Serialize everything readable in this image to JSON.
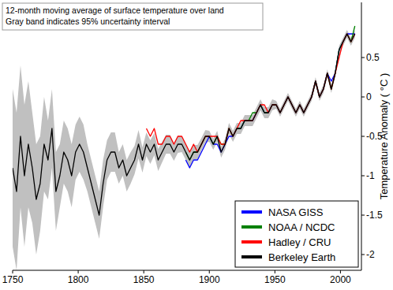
{
  "chart_data": {
    "type": "line",
    "annotations": [
      "12-month moving average of surface temperature over land",
      "Gray band indicates 95% uncertainty interval"
    ],
    "y_label": "Temperature Anomaly ( °C )",
    "xlim": [
      1750,
      2016
    ],
    "xticks": [
      1750,
      1800,
      1850,
      1900,
      1950,
      2000
    ],
    "ylim": [
      -2.2,
      1.2
    ],
    "yticks": [
      -2,
      -1.5,
      -1,
      -0.5,
      0,
      0.5
    ],
    "grid": false,
    "legend": "lower right",
    "x": [
      1750,
      1753,
      1756,
      1759,
      1762,
      1765,
      1768,
      1771,
      1774,
      1777,
      1780,
      1783,
      1786,
      1789,
      1792,
      1795,
      1798,
      1801,
      1804,
      1807,
      1810,
      1813,
      1816,
      1819,
      1822,
      1825,
      1828,
      1831,
      1834,
      1837,
      1840,
      1843,
      1846,
      1849,
      1852,
      1855,
      1858,
      1861,
      1864,
      1867,
      1870,
      1873,
      1876,
      1879,
      1882,
      1885,
      1888,
      1891,
      1894,
      1897,
      1900,
      1903,
      1906,
      1909,
      1912,
      1915,
      1918,
      1921,
      1924,
      1927,
      1930,
      1933,
      1936,
      1939,
      1942,
      1945,
      1948,
      1951,
      1954,
      1957,
      1960,
      1963,
      1966,
      1969,
      1972,
      1975,
      1978,
      1981,
      1984,
      1987,
      1990,
      1993,
      1996,
      1999,
      2002,
      2005,
      2008,
      2011
    ],
    "series": [
      {
        "name": "NASA GISS",
        "color": "#0000ff",
        "values": [
          null,
          null,
          null,
          null,
          null,
          null,
          null,
          null,
          null,
          null,
          null,
          null,
          null,
          null,
          null,
          null,
          null,
          null,
          null,
          null,
          null,
          null,
          null,
          null,
          null,
          null,
          null,
          null,
          null,
          null,
          null,
          null,
          null,
          null,
          null,
          null,
          null,
          null,
          null,
          null,
          null,
          null,
          null,
          null,
          -0.8,
          -0.9,
          -0.8,
          -0.8,
          -0.7,
          -0.6,
          -0.5,
          -0.6,
          -0.6,
          -0.7,
          -0.6,
          -0.5,
          -0.5,
          -0.4,
          -0.4,
          -0.3,
          -0.3,
          -0.3,
          -0.2,
          -0.1,
          -0.2,
          -0.2,
          -0.1,
          -0.1,
          -0.2,
          -0.1,
          0.0,
          -0.1,
          -0.2,
          -0.1,
          -0.2,
          -0.1,
          0.0,
          0.2,
          0.0,
          0.1,
          0.3,
          0.2,
          0.3,
          0.6,
          0.7,
          0.8,
          0.8,
          0.8
        ]
      },
      {
        "name": "NOAA / NCDC",
        "color": "#008000",
        "values": [
          null,
          null,
          null,
          null,
          null,
          null,
          null,
          null,
          null,
          null,
          null,
          null,
          null,
          null,
          null,
          null,
          null,
          null,
          null,
          null,
          null,
          null,
          null,
          null,
          null,
          null,
          null,
          null,
          null,
          null,
          null,
          null,
          null,
          null,
          null,
          null,
          null,
          null,
          null,
          null,
          null,
          null,
          null,
          null,
          -0.7,
          -0.8,
          -0.7,
          -0.7,
          -0.6,
          -0.5,
          -0.5,
          -0.6,
          -0.5,
          -0.6,
          -0.6,
          -0.4,
          -0.5,
          -0.4,
          -0.4,
          -0.3,
          -0.3,
          -0.2,
          -0.2,
          -0.1,
          -0.2,
          -0.2,
          -0.1,
          -0.1,
          -0.2,
          -0.1,
          0.0,
          -0.1,
          -0.2,
          -0.1,
          -0.2,
          -0.1,
          0.0,
          0.2,
          0.0,
          0.1,
          0.3,
          0.1,
          0.3,
          0.6,
          0.7,
          0.8,
          0.7,
          0.9
        ]
      },
      {
        "name": "Hadley / CRU",
        "color": "#ff0000",
        "values": [
          null,
          null,
          null,
          null,
          null,
          null,
          null,
          null,
          null,
          null,
          null,
          null,
          null,
          null,
          null,
          null,
          null,
          null,
          null,
          null,
          null,
          null,
          null,
          null,
          null,
          null,
          null,
          null,
          null,
          null,
          null,
          null,
          null,
          null,
          -0.4,
          -0.5,
          -0.4,
          -0.6,
          -0.6,
          -0.5,
          -0.5,
          -0.6,
          -0.5,
          -0.5,
          -0.6,
          -0.7,
          -0.6,
          -0.7,
          -0.6,
          -0.5,
          -0.5,
          -0.5,
          -0.5,
          -0.6,
          -0.6,
          -0.4,
          -0.5,
          -0.4,
          -0.3,
          -0.3,
          -0.3,
          -0.3,
          -0.2,
          -0.1,
          -0.1,
          -0.2,
          -0.1,
          -0.1,
          -0.2,
          -0.1,
          0.0,
          -0.1,
          -0.2,
          -0.1,
          -0.2,
          -0.1,
          0.0,
          0.2,
          0.0,
          0.1,
          0.3,
          0.1,
          0.3,
          0.5,
          0.7,
          0.8,
          0.7,
          0.8
        ]
      },
      {
        "name": "Berkeley Earth",
        "color": "#000000",
        "values": [
          -0.9,
          -1.2,
          -0.5,
          -1.0,
          -0.6,
          -0.9,
          -1.3,
          -1.1,
          -0.6,
          -0.8,
          -0.4,
          -1.2,
          -1.0,
          -0.7,
          -0.8,
          -1.0,
          -0.7,
          -0.6,
          -0.7,
          -0.9,
          -1.1,
          -1.3,
          -1.5,
          -1.1,
          -0.8,
          -0.7,
          -0.7,
          -0.9,
          -0.8,
          -1.0,
          -0.9,
          -0.8,
          -0.6,
          -0.8,
          -0.6,
          -0.7,
          -0.6,
          -0.8,
          -0.7,
          -0.6,
          -0.6,
          -0.7,
          -0.6,
          -0.6,
          -0.7,
          -0.8,
          -0.7,
          -0.7,
          -0.6,
          -0.5,
          -0.5,
          -0.6,
          -0.5,
          -0.7,
          -0.6,
          -0.4,
          -0.5,
          -0.4,
          -0.4,
          -0.3,
          -0.3,
          -0.3,
          -0.2,
          -0.1,
          -0.2,
          -0.2,
          -0.1,
          -0.1,
          -0.2,
          -0.1,
          0.0,
          -0.1,
          -0.2,
          -0.1,
          -0.2,
          -0.1,
          0.0,
          0.2,
          0.0,
          0.1,
          0.3,
          0.1,
          0.3,
          0.6,
          0.7,
          0.8,
          0.7,
          0.8
        ],
        "uncertainty": [
          1.0,
          1.0,
          0.9,
          0.9,
          0.8,
          0.7,
          0.7,
          0.6,
          0.6,
          0.5,
          0.5,
          0.5,
          0.4,
          0.4,
          0.4,
          0.4,
          0.35,
          0.35,
          0.35,
          0.3,
          0.3,
          0.3,
          0.3,
          0.3,
          0.25,
          0.25,
          0.25,
          0.2,
          0.2,
          0.2,
          0.2,
          0.18,
          0.18,
          0.16,
          0.15,
          0.15,
          0.14,
          0.14,
          0.13,
          0.12,
          0.12,
          0.11,
          0.11,
          0.1,
          0.1,
          0.1,
          0.09,
          0.09,
          0.08,
          0.08,
          0.07,
          0.07,
          0.07,
          0.07,
          0.07,
          0.07,
          0.07,
          0.07,
          0.07,
          0.07,
          0.07,
          0.07,
          0.07,
          0.07,
          0.07,
          0.07,
          0.07,
          0.05,
          0.05,
          0.05,
          0.05,
          0.05,
          0.05,
          0.05,
          0.05,
          0.05,
          0.05,
          0.05,
          0.05,
          0.05,
          0.05,
          0.05,
          0.05,
          0.05,
          0.05,
          0.05,
          0.05,
          0.05
        ]
      }
    ]
  }
}
